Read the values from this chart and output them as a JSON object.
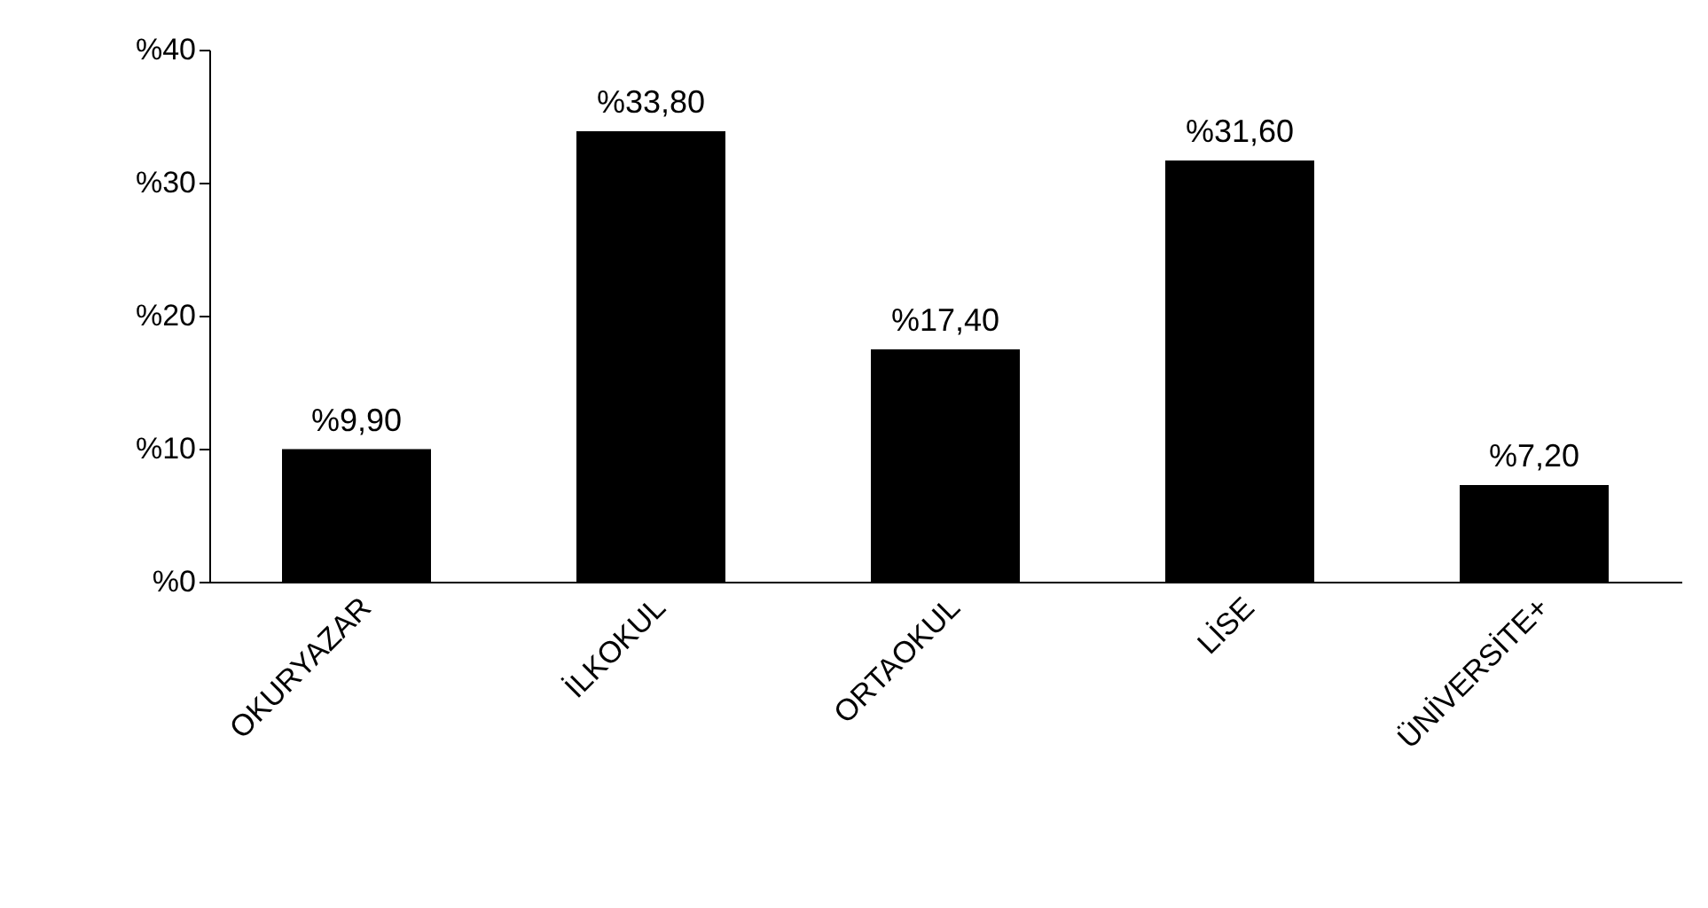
{
  "chart_data": {
    "type": "bar",
    "categories": [
      "OKURYAZAR",
      "İLKOKUL",
      "ORTAOKUL",
      "LİSE",
      "ÜNİVERSİTE+"
    ],
    "values": [
      9.9,
      33.8,
      17.4,
      31.6,
      7.2
    ],
    "value_labels": [
      "%9,90",
      "%33,80",
      "%17,40",
      "%31,60",
      "%7,20"
    ],
    "color": "#000000",
    "ylim": [
      0,
      40
    ],
    "yticks": [
      {
        "value": 0,
        "label": "%0"
      },
      {
        "value": 10,
        "label": "%10"
      },
      {
        "value": 20,
        "label": "%20"
      },
      {
        "value": 30,
        "label": "%30"
      },
      {
        "value": 40,
        "label": "%40"
      }
    ],
    "grid": false
  }
}
